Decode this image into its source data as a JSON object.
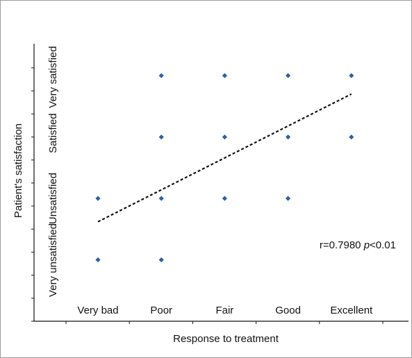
{
  "chart_data": {
    "type": "scatter",
    "xlabel": "Response to treatment",
    "ylabel": "Patient's satisfaction",
    "x_categories": [
      "Very bad",
      "Poor",
      "Fair",
      "Good",
      "Excellent"
    ],
    "y_categories": [
      "Very unsatisfied",
      "Unsatisfied",
      "Satisfied",
      "Very satisfied"
    ],
    "points": [
      {
        "x": "Very bad",
        "y": "Unsatisfied"
      },
      {
        "x": "Very bad",
        "y": "Very unsatisfied"
      },
      {
        "x": "Poor",
        "y": "Very satisfied"
      },
      {
        "x": "Poor",
        "y": "Satisfied"
      },
      {
        "x": "Poor",
        "y": "Unsatisfied"
      },
      {
        "x": "Poor",
        "y": "Very unsatisfied"
      },
      {
        "x": "Fair",
        "y": "Very satisfied"
      },
      {
        "x": "Fair",
        "y": "Satisfied"
      },
      {
        "x": "Fair",
        "y": "Unsatisfied"
      },
      {
        "x": "Good",
        "y": "Very satisfied"
      },
      {
        "x": "Good",
        "y": "Satisfied"
      },
      {
        "x": "Good",
        "y": "Unsatisfied"
      },
      {
        "x": "Excellent",
        "y": "Very satisfied"
      },
      {
        "x": "Excellent",
        "y": "Satisfied"
      }
    ],
    "trendline": {
      "style": "dashed",
      "from": {
        "x": 1.0,
        "y": 1.62
      },
      "to": {
        "x": 5.0,
        "y": 3.7
      }
    },
    "annotation": {
      "r_text": "r=0.7980 ",
      "p_symbol": "p",
      "p_text": "<0.01"
    },
    "point_color": "#2e5fa3",
    "trendline_color": "#111111",
    "grid": false
  }
}
